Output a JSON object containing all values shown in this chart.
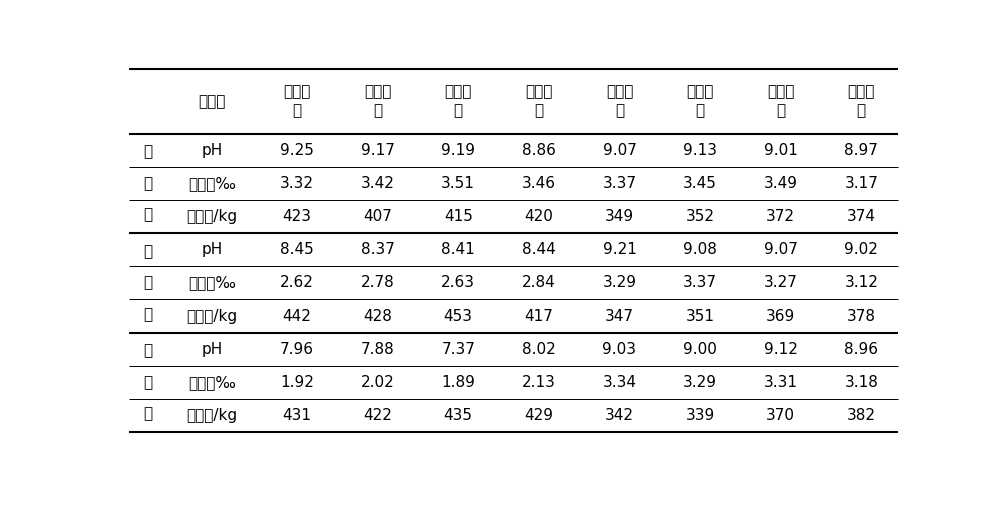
{
  "groups": [
    {
      "group_chars": [
        "第",
        "一",
        "年"
      ],
      "rows": [
        [
          "pH",
          "9.25",
          "9.17",
          "9.19",
          "8.86",
          "9.07",
          "9.13",
          "9.01",
          "8.97"
        ],
        [
          "含盐量‰",
          "3.32",
          "3.42",
          "3.51",
          "3.46",
          "3.37",
          "3.45",
          "3.49",
          "3.17"
        ],
        [
          "亩产量/kg",
          "423",
          "407",
          "415",
          "420",
          "349",
          "352",
          "372",
          "374"
        ]
      ]
    },
    {
      "group_chars": [
        "第",
        "二",
        "年"
      ],
      "rows": [
        [
          "pH",
          "8.45",
          "8.37",
          "8.41",
          "8.44",
          "9.21",
          "9.08",
          "9.07",
          "9.02"
        ],
        [
          "含盐量‰",
          "2.62",
          "2.78",
          "2.63",
          "2.84",
          "3.29",
          "3.37",
          "3.27",
          "3.12"
        ],
        [
          "亩产量/kg",
          "442",
          "428",
          "453",
          "417",
          "347",
          "351",
          "369",
          "378"
        ]
      ]
    },
    {
      "group_chars": [
        "第",
        "三",
        "年"
      ],
      "rows": [
        [
          "pH",
          "7.96",
          "7.88",
          "7.37",
          "8.02",
          "9.03",
          "9.00",
          "9.12",
          "8.96"
        ],
        [
          "含盐量‰",
          "1.92",
          "2.02",
          "1.89",
          "2.13",
          "3.34",
          "3.29",
          "3.31",
          "3.18"
        ],
        [
          "亩产量/kg",
          "431",
          "422",
          "435",
          "429",
          "342",
          "339",
          "370",
          "382"
        ]
      ]
    }
  ],
  "header_col1": "对比项",
  "header_cols": [
    "试验区\n一",
    "试验区\n二",
    "试验区\n三",
    "试验区\n四",
    "试验区\n五",
    "试验区\n六",
    "试验区\n七",
    "试验区\n八"
  ],
  "bg_color": "#ffffff",
  "text_color": "#000000",
  "line_color": "#000000",
  "font_size": 11,
  "header_font_size": 11,
  "lw_thick": 1.5,
  "lw_thin": 0.7
}
